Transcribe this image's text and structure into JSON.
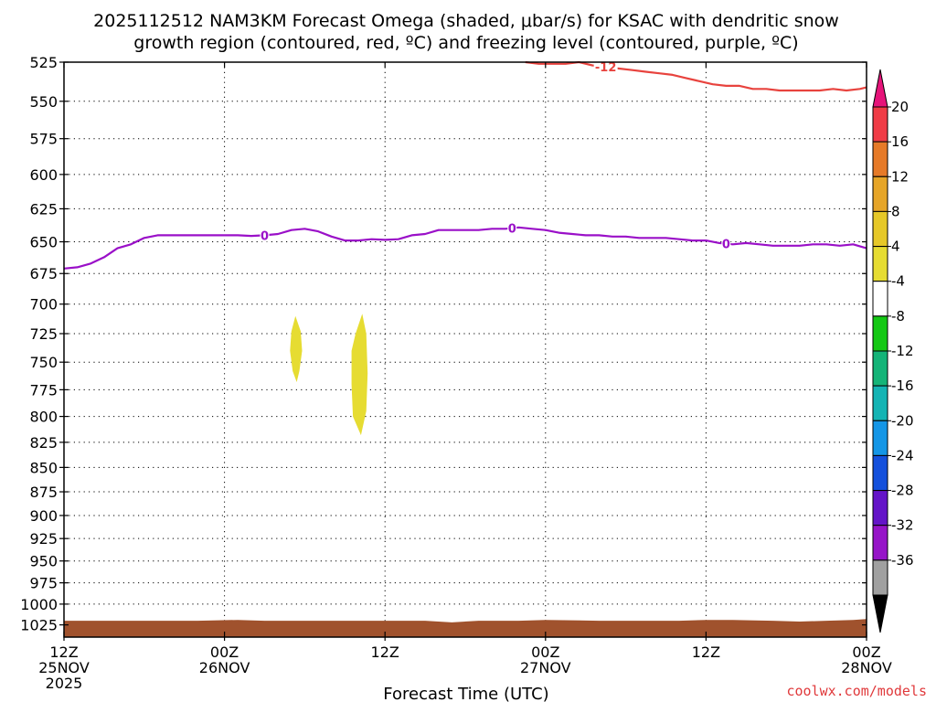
{
  "chart_data": {
    "type": "time-height contour",
    "title_line1": "2025112512 NAM3KM Forecast Omega (shaded, μbar/s) for KSAC with dendritic snow",
    "title_line2": "growth region (contoured, red, ºC) and freezing level (contoured, purple, ºC)",
    "xlabel": "Forecast Time (UTC)",
    "credit": "coolwx.com/models",
    "x_hours_range": [
      0,
      60
    ],
    "x_ticks": [
      {
        "hour": 0,
        "l1": "12Z",
        "l2": "25NOV",
        "l3": "2025"
      },
      {
        "hour": 12,
        "l1": "00Z",
        "l2": "26NOV",
        "l3": ""
      },
      {
        "hour": 24,
        "l1": "12Z",
        "l2": "",
        "l3": ""
      },
      {
        "hour": 36,
        "l1": "00Z",
        "l2": "27NOV",
        "l3": ""
      },
      {
        "hour": 48,
        "l1": "12Z",
        "l2": "",
        "l3": ""
      },
      {
        "hour": 60,
        "l1": "00Z",
        "l2": "28NOV",
        "l3": ""
      }
    ],
    "y_range_hpa": [
      525,
      1040
    ],
    "y_ticks": [
      "525",
      "550",
      "575",
      "600",
      "625",
      "650",
      "675",
      "700",
      "725",
      "750",
      "775",
      "800",
      "825",
      "850",
      "875",
      "900",
      "925",
      "950",
      "975",
      "1000",
      "1025"
    ],
    "freezing_level": {
      "name": "freezing level 0ºC",
      "color": "#9a10c8",
      "label": "0",
      "label_hours": [
        15,
        33.5,
        49.5
      ],
      "points": [
        [
          0,
          671
        ],
        [
          1,
          670
        ],
        [
          2,
          667
        ],
        [
          3,
          662
        ],
        [
          4,
          655
        ],
        [
          5,
          652
        ],
        [
          6,
          647
        ],
        [
          7,
          645
        ],
        [
          8,
          645
        ],
        [
          10,
          645
        ],
        [
          12,
          645
        ],
        [
          13,
          645
        ],
        [
          14,
          645.5
        ],
        [
          15,
          645
        ],
        [
          16,
          644
        ],
        [
          17,
          641
        ],
        [
          18,
          640
        ],
        [
          19,
          642
        ],
        [
          20,
          646
        ],
        [
          21,
          649
        ],
        [
          22,
          649
        ],
        [
          23,
          648
        ],
        [
          24,
          648.5
        ],
        [
          25,
          648
        ],
        [
          26,
          645
        ],
        [
          27,
          644
        ],
        [
          28,
          641
        ],
        [
          29,
          641
        ],
        [
          30,
          641
        ],
        [
          31,
          641
        ],
        [
          32,
          640
        ],
        [
          33,
          640
        ],
        [
          34,
          639
        ],
        [
          35,
          640
        ],
        [
          36,
          641
        ],
        [
          37,
          643
        ],
        [
          38,
          644
        ],
        [
          39,
          645
        ],
        [
          40,
          645
        ],
        [
          41,
          646
        ],
        [
          42,
          646
        ],
        [
          43,
          647
        ],
        [
          44,
          647
        ],
        [
          45,
          647
        ],
        [
          46,
          648
        ],
        [
          47,
          649
        ],
        [
          48,
          649
        ],
        [
          49,
          651
        ],
        [
          50,
          652
        ],
        [
          51,
          651
        ],
        [
          52,
          652
        ],
        [
          53,
          653
        ],
        [
          54,
          653
        ],
        [
          55,
          653
        ],
        [
          56,
          652
        ],
        [
          57,
          652
        ],
        [
          58,
          653
        ],
        [
          59,
          652
        ],
        [
          60,
          655
        ]
      ]
    },
    "dendritic_contour": {
      "name": "dendritic snow growth -12ºC",
      "color": "#e8433e",
      "label": "-12",
      "label_hour": 40.5,
      "points": [
        [
          34.5,
          525
        ],
        [
          35.5,
          526
        ],
        [
          36.5,
          526
        ],
        [
          37.5,
          526
        ],
        [
          38.5,
          525
        ],
        [
          39.5,
          527
        ],
        [
          40.5,
          528
        ],
        [
          41.5,
          529
        ],
        [
          42.5,
          530
        ],
        [
          43.5,
          531
        ],
        [
          44.5,
          532
        ],
        [
          45.5,
          533
        ],
        [
          46.5,
          535
        ],
        [
          47.5,
          537
        ],
        [
          48.5,
          539
        ],
        [
          49.5,
          540
        ],
        [
          50.5,
          540
        ],
        [
          51.5,
          542
        ],
        [
          52.5,
          542
        ],
        [
          53.5,
          543
        ],
        [
          54.5,
          543
        ],
        [
          55.5,
          543
        ],
        [
          56.5,
          543
        ],
        [
          57.5,
          542
        ],
        [
          58.5,
          543
        ],
        [
          59.5,
          542
        ],
        [
          60,
          541
        ]
      ]
    },
    "omega_shaded_regions": [
      {
        "name": "omega 4-8",
        "color": "#e6dc32",
        "points": [
          [
            17.3,
            710
          ],
          [
            17.7,
            723
          ],
          [
            17.8,
            740
          ],
          [
            17.6,
            758
          ],
          [
            17.4,
            768
          ],
          [
            17.1,
            758
          ],
          [
            16.9,
            740
          ],
          [
            17.0,
            723
          ]
        ]
      },
      {
        "name": "omega 4-8",
        "color": "#e6dc32",
        "points": [
          [
            22.3,
            708
          ],
          [
            22.6,
            725
          ],
          [
            22.7,
            760
          ],
          [
            22.6,
            795
          ],
          [
            22.2,
            818
          ],
          [
            21.6,
            800
          ],
          [
            21.5,
            770
          ],
          [
            21.5,
            740
          ],
          [
            21.8,
            725
          ]
        ]
      }
    ],
    "surface_terrain": {
      "name": "surface",
      "color": "#a0522d",
      "top_points": [
        [
          0,
          1020
        ],
        [
          6,
          1020
        ],
        [
          10,
          1020
        ],
        [
          13,
          1019
        ],
        [
          15,
          1020
        ],
        [
          20,
          1020
        ],
        [
          27,
          1020
        ],
        [
          29,
          1022
        ],
        [
          31,
          1020
        ],
        [
          34,
          1020
        ],
        [
          36,
          1019
        ],
        [
          40,
          1020
        ],
        [
          46,
          1020
        ],
        [
          48,
          1019
        ],
        [
          50,
          1019
        ],
        [
          53,
          1020
        ],
        [
          55,
          1021
        ],
        [
          57,
          1020
        ],
        [
          59,
          1019
        ],
        [
          60,
          1018
        ]
      ],
      "bottom_hpa": 1040
    },
    "colorbar": {
      "labels": [
        "20",
        "16",
        "12",
        "8",
        "4",
        "-4",
        "-8",
        "-12",
        "-16",
        "-20",
        "-24",
        "-28",
        "-32",
        "-36"
      ],
      "colors": [
        "#f03c46",
        "#e67a28",
        "#e6a528",
        "#e6c828",
        "#e6dc32",
        "#ffffff",
        "#14c814",
        "#14b478",
        "#14b4b4",
        "#1496e6",
        "#1450dc",
        "#6414c8",
        "#9614c8",
        "#a0a0a0"
      ],
      "top_arrow_color": "#e6147a",
      "bottom_arrow_color": "#000000"
    }
  }
}
